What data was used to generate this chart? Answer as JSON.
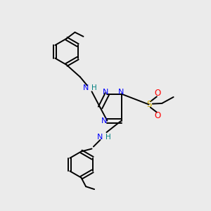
{
  "bg_color": "#ebebeb",
  "line_color": "#000000",
  "N_color": "#0000ff",
  "S_color": "#ccaa00",
  "O_color": "#ff0000",
  "NH_color": "#008080",
  "figsize": [
    3.0,
    3.0
  ],
  "dpi": 100,
  "xlim": [
    0,
    10
  ],
  "ylim": [
    0,
    10
  ]
}
